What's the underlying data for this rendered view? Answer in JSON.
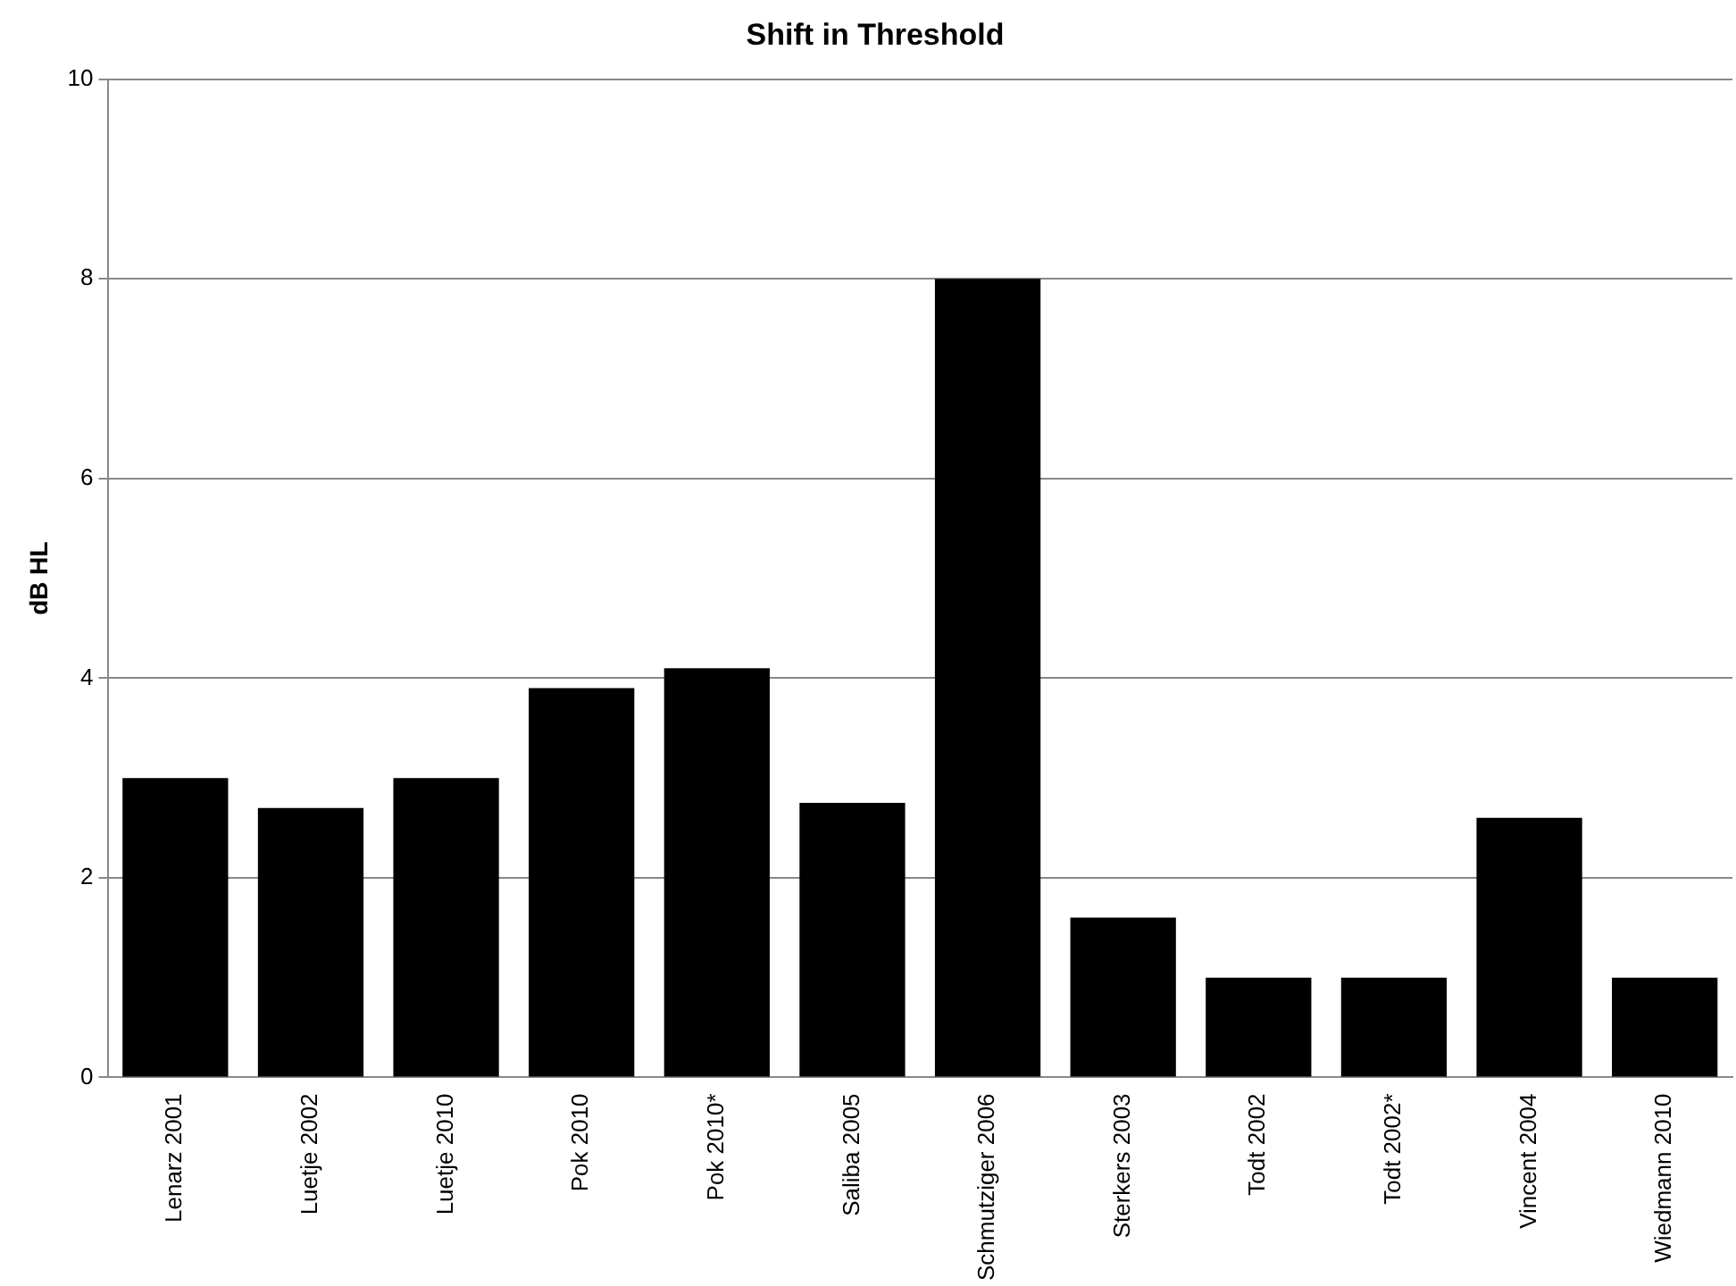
{
  "chart_data": {
    "type": "bar",
    "title": "Shift in Threshold",
    "ylabel": "dB HL",
    "categories": [
      "Lenarz 2001",
      "Luetje 2002",
      "Luetje 2010",
      "Pok 2010",
      "Pok 2010*",
      "Saliba 2005",
      "Schmutziger 2006",
      "Sterkers 2003",
      "Todt 2002",
      "Todt 2002*",
      "Vincent 2004",
      "Wiedmann 2010"
    ],
    "values": [
      3,
      2.7,
      3,
      3.9,
      4.1,
      2.75,
      8,
      1.6,
      1,
      1,
      2.6,
      1
    ],
    "color": "#000000",
    "ylim": [
      0,
      10
    ],
    "yticks": [
      0,
      2,
      4,
      6,
      8,
      10
    ],
    "grid": "y",
    "legend": false
  }
}
